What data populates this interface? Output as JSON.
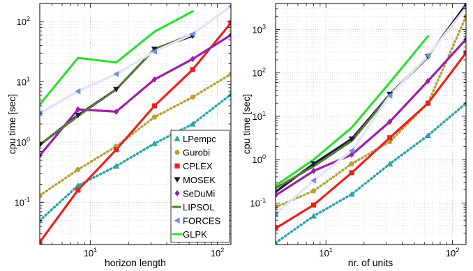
{
  "chart_data": [
    {
      "type": "line",
      "xscale": "log",
      "yscale": "log",
      "xlim": [
        4,
        128
      ],
      "ylim": [
        0.02,
        200
      ],
      "xticks": [
        10,
        100
      ],
      "yticks": [
        0.1,
        1,
        10,
        100
      ],
      "grid": true,
      "xlabel": "horizon length",
      "ylabel": "cpu time [sec]",
      "legend_position": "bottom-right",
      "x": [
        4,
        8,
        16,
        32,
        64,
        128
      ],
      "series": [
        {
          "name": "LPempc",
          "color": "#2aa5a5",
          "style": "dotted",
          "marker": "triangle-up",
          "values": [
            0.05,
            0.19,
            0.4,
            0.95,
            2.0,
            6.2
          ]
        },
        {
          "name": "Gurobi",
          "color": "#b5a23a",
          "style": "dotted",
          "marker": "circle",
          "values": [
            0.13,
            0.35,
            0.85,
            2.6,
            5.6,
            13.5
          ]
        },
        {
          "name": "CPLEX",
          "color": "#e8231e",
          "style": "solid",
          "marker": "square",
          "values": [
            0.022,
            0.16,
            0.75,
            4.0,
            16,
            95
          ]
        },
        {
          "name": "MOSEK",
          "color": "#1a1a3c",
          "style": "solid",
          "marker": "triangle-down",
          "values": [
            0.9,
            2.8,
            7.5,
            35,
            58,
            null
          ]
        },
        {
          "name": "SeDuMi",
          "color": "#9a1fa8",
          "style": "solid",
          "marker": "diamond",
          "values": [
            0.6,
            3.5,
            3.2,
            11,
            24,
            60
          ]
        },
        {
          "name": "LIPSOL",
          "color": "#5a7a3a",
          "style": "dashed",
          "marker": "none",
          "values": [
            0.9,
            2.7,
            7.5,
            35,
            62,
            null
          ]
        },
        {
          "name": "FORCES",
          "color": "#6f8fe0",
          "style": "solid-light",
          "marker": "triangle-left",
          "values": [
            3.0,
            7.0,
            13.5,
            32,
            62,
            180
          ]
        },
        {
          "name": "GLPK",
          "color": "#33dd33",
          "style": "solid",
          "marker": "none",
          "values": [
            4.2,
            25,
            21,
            68,
            148,
            null
          ]
        }
      ]
    },
    {
      "type": "line",
      "xscale": "log",
      "yscale": "log",
      "xlim": [
        4,
        128
      ],
      "ylim": [
        0.011,
        4000
      ],
      "xticks": [
        10,
        100
      ],
      "yticks": [
        0.1,
        1,
        10,
        100,
        1000
      ],
      "grid": true,
      "xlabel": "nr. of units",
      "ylabel": "cpu time [sec]",
      "x": [
        4,
        8,
        16,
        32,
        64,
        128
      ],
      "series": [
        {
          "name": "LPempc",
          "color": "#2aa5a5",
          "style": "dotted",
          "marker": "triangle-up",
          "values": [
            0.012,
            0.05,
            0.16,
            0.8,
            3.6,
            20
          ]
        },
        {
          "name": "Gurobi",
          "color": "#b5a23a",
          "style": "dotted",
          "marker": "circle",
          "values": [
            0.08,
            0.19,
            0.8,
            2.6,
            20,
            2000
          ]
        },
        {
          "name": "CPLEX",
          "color": "#e8231e",
          "style": "solid",
          "marker": "square",
          "values": [
            0.026,
            0.09,
            0.5,
            3.2,
            20,
            290
          ]
        },
        {
          "name": "MOSEK",
          "color": "#1a1a3c",
          "style": "solid",
          "marker": "triangle-down",
          "values": [
            0.18,
            0.8,
            3.0,
            32,
            240,
            3800
          ]
        },
        {
          "name": "SeDuMi",
          "color": "#9a1fa8",
          "style": "solid",
          "marker": "diamond",
          "values": [
            0.15,
            0.55,
            1.3,
            7.5,
            65,
            600
          ]
        },
        {
          "name": "LIPSOL",
          "color": "#5a7a3a",
          "style": "dashed",
          "marker": "none",
          "values": [
            0.22,
            0.7,
            2.7,
            31,
            230,
            null
          ]
        },
        {
          "name": "FORCES",
          "color": "#6f8fe0",
          "style": "solid-light",
          "marker": "triangle-left",
          "values": [
            0.055,
            0.33,
            1.6,
            30,
            250,
            3200
          ]
        },
        {
          "name": "GLPK",
          "color": "#33dd33",
          "style": "solid",
          "marker": "none",
          "values": [
            0.25,
            1.0,
            5.5,
            60,
            700,
            null
          ]
        }
      ]
    }
  ]
}
